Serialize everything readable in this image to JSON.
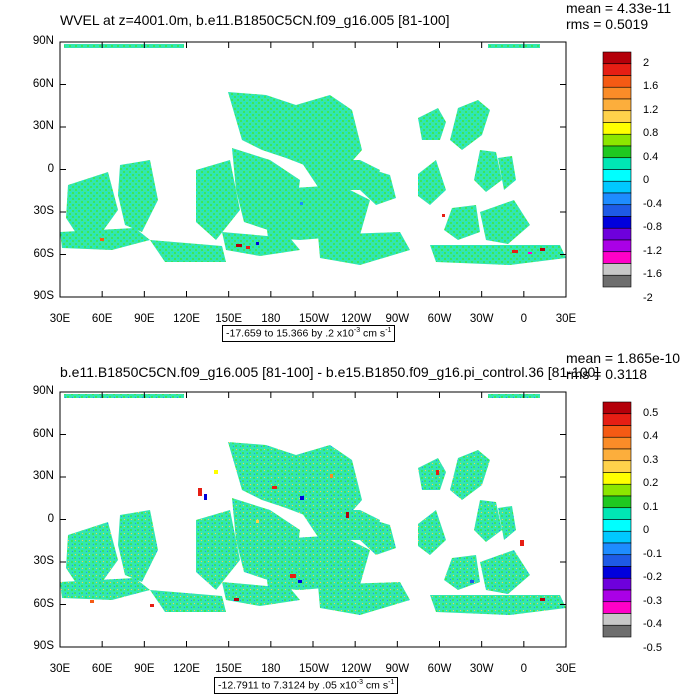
{
  "panels": [
    {
      "title": "WVEL at z=4001.0m, b.e11.B1850C5CN.f09_g16.005 [81-100]",
      "stats": {
        "mean": "mean = 4.33e-11",
        "rms": "rms = 0.5019"
      },
      "range": {
        "prefix": "-17.659 to 15.366 by .2 x10",
        "exp": "-3",
        "unit": " cm s",
        "unit_exp": "-1"
      },
      "colorbar_labels": [
        "2",
        "1.6",
        "1.2",
        "0.8",
        "0.4",
        "0",
        "-0.4",
        "-0.8",
        "-1.2",
        "-1.6",
        "-2"
      ]
    },
    {
      "title": "b.e11.B1850C5CN.f09_g16.005 [81-100] - b.e15.B1850.f09_g16.pi_control.36 [81-100]",
      "stats": {
        "mean": "mean = 1.865e-10",
        "rms": "rms = 0.3118"
      },
      "range": {
        "prefix": "-12.7911 to 7.3124 by .05 x10",
        "exp": "-3",
        "unit": " cm s",
        "unit_exp": "-1"
      },
      "colorbar_labels": [
        "0.5",
        "0.4",
        "0.3",
        "0.2",
        "0.1",
        "0",
        "-0.1",
        "-0.2",
        "-0.3",
        "-0.4",
        "-0.5"
      ]
    }
  ],
  "lat_labels": [
    "90N",
    "60N",
    "30N",
    "0",
    "30S",
    "60S",
    "90S"
  ],
  "lon_labels": [
    "30E",
    "60E",
    "90E",
    "120E",
    "150E",
    "180",
    "150W",
    "120W",
    "90W",
    "60W",
    "30W",
    "0",
    "30E"
  ],
  "colorbar_colors": [
    "#b4000a",
    "#e61e14",
    "#f55a14",
    "#fa8c28",
    "#fcae3c",
    "#ffd24b",
    "#ffff00",
    "#8ce600",
    "#1fc81f",
    "#00e6b4",
    "#00ffff",
    "#00c8ff",
    "#1e8cff",
    "#1e5ae6",
    "#0000dc",
    "#6e00dc",
    "#aa00e6",
    "#ff00c8",
    "#c8c8c8",
    "#6e6e6e"
  ],
  "map_colors": {
    "ocean_fill": "#33e6b0",
    "near_zero_dots": "#39e85a",
    "land": "#ffffff"
  }
}
